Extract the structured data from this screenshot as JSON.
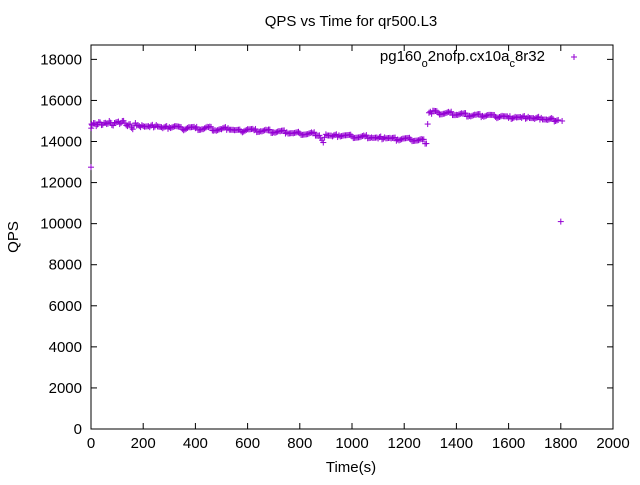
{
  "chart_data": {
    "type": "scatter",
    "title": "QPS vs Time for qr500.L3",
    "xlabel": "Time(s)",
    "ylabel": "QPS",
    "xlim": [
      0,
      2000
    ],
    "ylim": [
      0,
      18700
    ],
    "xticks": [
      0,
      200,
      400,
      600,
      800,
      1000,
      1200,
      1400,
      1600,
      1800,
      2000
    ],
    "yticks": [
      0,
      2000,
      4000,
      6000,
      8000,
      10000,
      12000,
      14000,
      16000,
      18000
    ],
    "grid": false,
    "legend_position": "top-right",
    "series": [
      {
        "name_parts": [
          "pg160",
          "o",
          "2nofp.cx10a",
          "c",
          "8r32"
        ],
        "marker": "plus",
        "color": "#9400d3",
        "x": [
          0,
          1,
          2,
          4,
          10,
          20,
          30,
          40,
          50,
          60,
          70,
          80,
          90,
          100,
          110,
          120,
          130,
          140,
          150,
          160,
          170,
          180,
          190,
          200,
          225,
          250,
          275,
          300,
          325,
          350,
          375,
          400,
          425,
          450,
          475,
          500,
          525,
          550,
          575,
          600,
          625,
          650,
          675,
          700,
          725,
          750,
          775,
          800,
          825,
          850,
          875,
          890,
          900,
          925,
          950,
          975,
          1000,
          1025,
          1050,
          1075,
          1100,
          1125,
          1150,
          1175,
          1200,
          1225,
          1250,
          1270,
          1285,
          1290,
          1295,
          1300,
          1305,
          1310,
          1330,
          1350,
          1375,
          1400,
          1425,
          1450,
          1475,
          1500,
          1525,
          1550,
          1575,
          1600,
          1625,
          1650,
          1675,
          1700,
          1725,
          1750,
          1770,
          1780,
          1790,
          1800,
          1805
        ],
        "y": [
          12750,
          14650,
          14850,
          14800,
          14900,
          14750,
          14950,
          14800,
          14900,
          14850,
          15000,
          14800,
          14900,
          14950,
          14850,
          15000,
          14900,
          14750,
          14850,
          14600,
          14900,
          14800,
          14700,
          14750,
          14700,
          14800,
          14650,
          14700,
          14750,
          14600,
          14700,
          14650,
          14600,
          14700,
          14550,
          14600,
          14650,
          14550,
          14500,
          14600,
          14550,
          14500,
          14550,
          14450,
          14500,
          14450,
          14400,
          14400,
          14350,
          14400,
          14300,
          13950,
          14350,
          14250,
          14300,
          14300,
          14250,
          14200,
          14250,
          14200,
          14150,
          14200,
          14150,
          14100,
          14150,
          14100,
          14050,
          14100,
          13900,
          14850,
          15400,
          15450,
          15350,
          15500,
          15400,
          15350,
          15400,
          15300,
          15350,
          15250,
          15300,
          15250,
          15300,
          15200,
          15250,
          15150,
          15200,
          15150,
          15200,
          15100,
          15150,
          15050,
          15100,
          15000,
          15050,
          10100,
          15000
        ]
      }
    ]
  }
}
